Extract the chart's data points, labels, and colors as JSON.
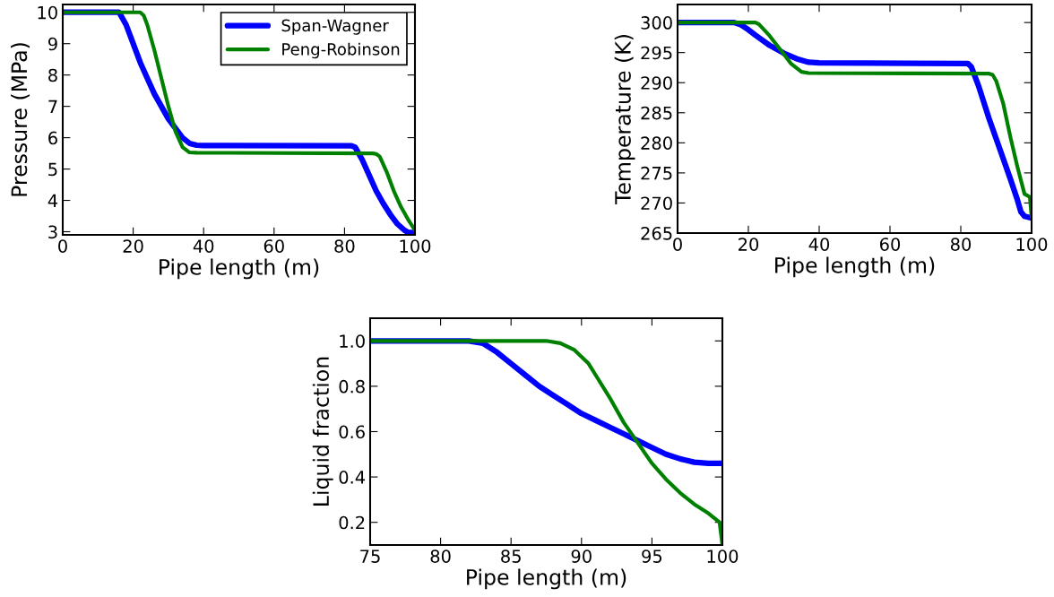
{
  "chart_data": [
    {
      "type": "line",
      "xlabel": "Pipe length (m)",
      "ylabel": "Pressure (MPa)",
      "xlim": [
        0,
        100
      ],
      "ylim": [
        2.9,
        10.25
      ],
      "xticks": [
        0,
        20,
        40,
        60,
        80,
        100
      ],
      "yticks": [
        3,
        4,
        5,
        6,
        7,
        8,
        9,
        10
      ],
      "legend": "top right",
      "grid": false,
      "series": [
        {
          "name": "Span-Wagner",
          "color": "#0000ff",
          "x": [
            0,
            16,
            18,
            20,
            22,
            24,
            26,
            28,
            30,
            32,
            34,
            36,
            38,
            40,
            82,
            83,
            85,
            87,
            89,
            91,
            93,
            95,
            97,
            98,
            100
          ],
          "values": [
            10,
            10,
            9.6,
            9.0,
            8.4,
            7.9,
            7.4,
            7.0,
            6.6,
            6.3,
            6.0,
            5.82,
            5.76,
            5.75,
            5.74,
            5.7,
            5.3,
            4.8,
            4.3,
            3.9,
            3.55,
            3.25,
            3.05,
            2.98,
            2.97
          ]
        },
        {
          "name": "Peng-Robinson",
          "color": "#008000",
          "x": [
            0,
            22,
            23,
            24,
            26,
            28,
            30,
            32,
            34,
            36,
            38,
            88,
            89,
            90,
            92,
            94,
            96,
            98,
            100
          ],
          "values": [
            10,
            10,
            9.9,
            9.6,
            8.8,
            7.9,
            7.0,
            6.2,
            5.7,
            5.53,
            5.52,
            5.5,
            5.48,
            5.4,
            4.9,
            4.3,
            3.8,
            3.4,
            3.05
          ]
        }
      ]
    },
    {
      "type": "line",
      "xlabel": "Pipe length (m)",
      "ylabel": "Temperature (K)",
      "xlim": [
        0,
        100
      ],
      "ylim": [
        265,
        303
      ],
      "xticks": [
        0,
        20,
        40,
        60,
        80,
        100
      ],
      "yticks": [
        265,
        270,
        275,
        280,
        285,
        290,
        295,
        300
      ],
      "grid": false,
      "series": [
        {
          "color": "#0000ff",
          "x": [
            0,
            16,
            18,
            20,
            22,
            26,
            30,
            34,
            37,
            40,
            82,
            83,
            85,
            88,
            91,
            94,
            96,
            97,
            98,
            100
          ],
          "values": [
            300,
            300,
            299.6,
            298.8,
            297.9,
            296.2,
            294.9,
            293.9,
            293.4,
            293.3,
            293.2,
            292.6,
            289.5,
            284,
            279,
            274,
            270.5,
            268.5,
            267.8,
            267.5
          ]
        },
        {
          "color": "#008000",
          "x": [
            0,
            22,
            23,
            26,
            29,
            32,
            35,
            37,
            88,
            89,
            90,
            92,
            94,
            96,
            98,
            99.5,
            100
          ],
          "values": [
            300,
            300,
            299.7,
            297.8,
            295.5,
            293.2,
            291.8,
            291.6,
            291.5,
            291.3,
            290.3,
            286.5,
            281,
            276,
            271.5,
            271,
            267.7
          ]
        }
      ]
    },
    {
      "type": "line",
      "xlabel": "Pipe length (m)",
      "ylabel": "Liquid fraction",
      "xlim": [
        75,
        100
      ],
      "ylim": [
        0.1,
        1.1
      ],
      "xticks": [
        75,
        80,
        85,
        90,
        95,
        100
      ],
      "yticks": [
        {
          "value": 0.2,
          "label": "0.2"
        },
        {
          "value": 0.4,
          "label": "0.4"
        },
        {
          "value": 0.6,
          "label": "0.6"
        },
        {
          "value": 0.8,
          "label": "0.8"
        },
        {
          "value": 1.0,
          "label": "1.0"
        }
      ],
      "grid": false,
      "series": [
        {
          "color": "#0000ff",
          "x": [
            75,
            82,
            83,
            84,
            85,
            86,
            87,
            88,
            89,
            90,
            91,
            92,
            93,
            94,
            95,
            96,
            97,
            98,
            99,
            100
          ],
          "values": [
            1,
            1,
            0.99,
            0.95,
            0.9,
            0.85,
            0.8,
            0.76,
            0.72,
            0.68,
            0.65,
            0.62,
            0.59,
            0.56,
            0.53,
            0.5,
            0.48,
            0.465,
            0.46,
            0.46
          ]
        },
        {
          "color": "#008000",
          "x": [
            75,
            87.5,
            88.5,
            89.5,
            90.5,
            91,
            92,
            93,
            94,
            95,
            96,
            97,
            98,
            99,
            99.8,
            99.9,
            100
          ],
          "values": [
            1,
            1,
            0.99,
            0.96,
            0.9,
            0.85,
            0.75,
            0.64,
            0.55,
            0.46,
            0.39,
            0.33,
            0.28,
            0.24,
            0.2,
            0.15,
            0.1
          ]
        }
      ]
    }
  ]
}
